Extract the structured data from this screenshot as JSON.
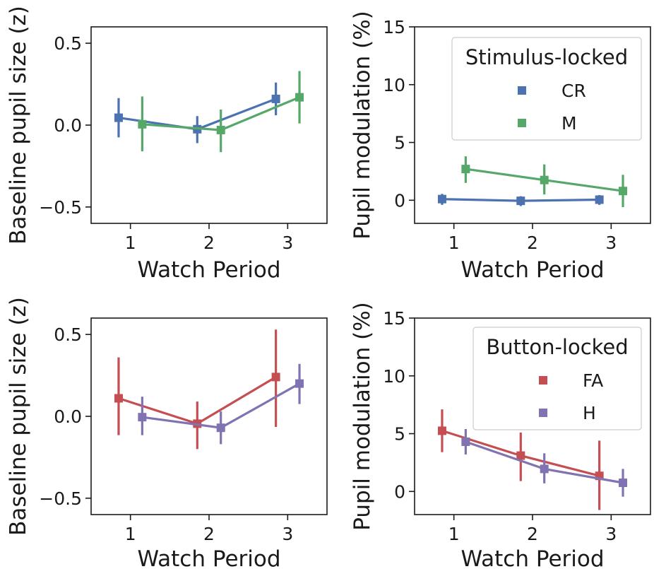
{
  "chart_data": [
    {
      "type": "line",
      "xlabel": "Watch Period",
      "ylabel": "Baseline pupil size (z)",
      "x_ticks": [
        1,
        2,
        3
      ],
      "y_ticks": [
        0.5,
        0.0,
        -0.5
      ],
      "y_tick_labels": [
        "0.5",
        "0.0",
        "−0.5"
      ],
      "xlim": [
        0.5,
        3.5
      ],
      "ylim": [
        -0.6,
        0.6
      ],
      "legend": null,
      "series": [
        {
          "name": "CR",
          "color": "#4c72b0",
          "x": [
            0.85,
            1.85,
            2.85
          ],
          "y": [
            0.045,
            -0.025,
            0.16
          ],
          "err_low": [
            -0.075,
            -0.11,
            0.06
          ],
          "err_high": [
            0.165,
            0.055,
            0.26
          ]
        },
        {
          "name": "M",
          "color": "#55a868",
          "x": [
            1.15,
            2.15,
            3.15
          ],
          "y": [
            0.005,
            -0.03,
            0.17
          ],
          "err_low": [
            -0.16,
            -0.165,
            0.01
          ],
          "err_high": [
            0.175,
            0.095,
            0.33
          ]
        }
      ]
    },
    {
      "type": "line",
      "xlabel": "Watch Period",
      "ylabel": "Pupil modulation (%)",
      "x_ticks": [
        1,
        2,
        3
      ],
      "y_ticks": [
        15,
        10,
        5,
        0
      ],
      "y_tick_labels": [
        "15",
        "10",
        "5",
        "0"
      ],
      "xlim": [
        0.5,
        3.5
      ],
      "ylim": [
        -2,
        15
      ],
      "legend": {
        "title": "Stimulus-locked",
        "position": "top-right",
        "entries": [
          "CR",
          "M"
        ]
      },
      "series": [
        {
          "name": "CR",
          "color": "#4c72b0",
          "x": [
            0.85,
            1.85,
            2.85
          ],
          "y": [
            0.1,
            -0.05,
            0.05
          ],
          "err_low": [
            -0.4,
            -0.5,
            -0.4
          ],
          "err_high": [
            0.55,
            0.35,
            0.45
          ]
        },
        {
          "name": "M",
          "color": "#55a868",
          "x": [
            1.15,
            2.15,
            3.15
          ],
          "y": [
            2.7,
            1.75,
            0.8
          ],
          "err_low": [
            1.5,
            0.5,
            -0.6
          ],
          "err_high": [
            3.8,
            3.1,
            2.2
          ]
        }
      ]
    },
    {
      "type": "line",
      "xlabel": "Watch Period",
      "ylabel": "Baseline pupil size (z)",
      "x_ticks": [
        1,
        2,
        3
      ],
      "y_ticks": [
        0.5,
        0.0,
        -0.5
      ],
      "y_tick_labels": [
        "0.5",
        "0.0",
        "−0.5"
      ],
      "xlim": [
        0.5,
        3.5
      ],
      "ylim": [
        -0.6,
        0.6
      ],
      "legend": null,
      "series": [
        {
          "name": "FA",
          "color": "#c44e52",
          "x": [
            0.85,
            1.85,
            2.85
          ],
          "y": [
            0.11,
            -0.045,
            0.24
          ],
          "err_low": [
            -0.115,
            -0.2,
            -0.065
          ],
          "err_high": [
            0.36,
            0.09,
            0.53
          ]
        },
        {
          "name": "H",
          "color": "#8172b2",
          "x": [
            1.15,
            2.15,
            3.15
          ],
          "y": [
            -0.005,
            -0.07,
            0.2
          ],
          "err_low": [
            -0.115,
            -0.17,
            0.075
          ],
          "err_high": [
            0.12,
            0.03,
            0.32
          ]
        }
      ]
    },
    {
      "type": "line",
      "xlabel": "Watch Period",
      "ylabel": "Pupil modulation (%)",
      "x_ticks": [
        1,
        2,
        3
      ],
      "y_ticks": [
        15,
        10,
        5,
        0
      ],
      "y_tick_labels": [
        "15",
        "10",
        "5",
        "0"
      ],
      "xlim": [
        0.5,
        3.5
      ],
      "ylim": [
        -2,
        15
      ],
      "legend": {
        "title": "Button-locked",
        "position": "top-right",
        "entries": [
          "FA",
          "H"
        ]
      },
      "series": [
        {
          "name": "FA",
          "color": "#c44e52",
          "x": [
            0.85,
            1.85,
            2.85
          ],
          "y": [
            5.25,
            3.1,
            1.35
          ],
          "err_low": [
            3.4,
            0.9,
            -1.6
          ],
          "err_high": [
            7.1,
            5.1,
            4.4
          ]
        },
        {
          "name": "H",
          "color": "#8172b2",
          "x": [
            1.15,
            2.15,
            3.15
          ],
          "y": [
            4.3,
            1.95,
            0.75
          ],
          "err_low": [
            3.2,
            0.7,
            -0.45
          ],
          "err_high": [
            5.4,
            3.3,
            1.95
          ]
        }
      ]
    }
  ]
}
